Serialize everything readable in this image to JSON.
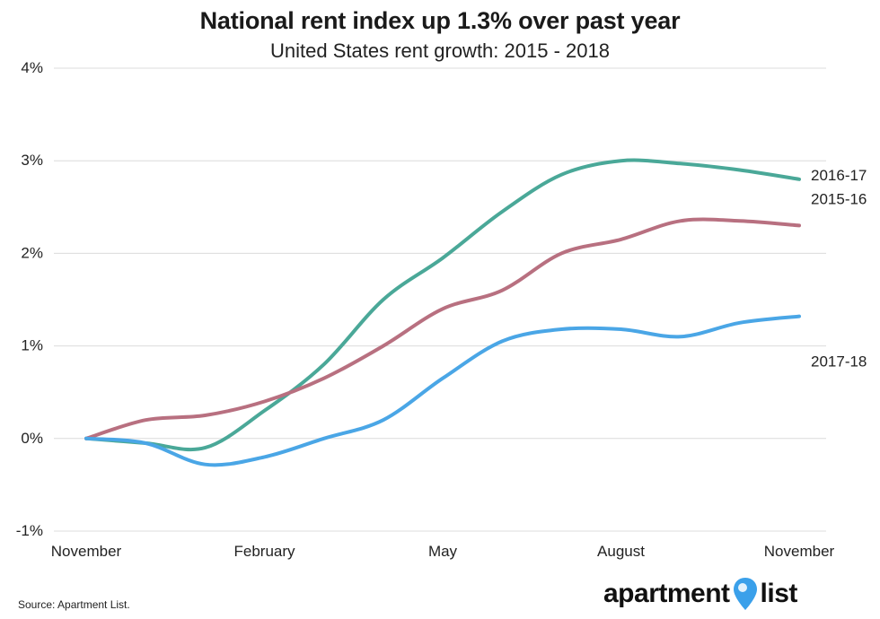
{
  "title": "National rent index up 1.3% over past year",
  "subtitle": "United States rent growth: 2015 - 2018",
  "source": "Source: Apartment List.",
  "logo": {
    "left_text": "apartment",
    "right_text": "list",
    "pin_color": "#3aa0ea"
  },
  "chart_data": {
    "type": "line",
    "title": "National rent index up 1.3% over past year",
    "subtitle": "United States rent growth: 2015 - 2018",
    "x_tick_labels": [
      "November",
      "February",
      "May",
      "August",
      "November"
    ],
    "x": [
      0,
      1,
      2,
      3,
      4,
      5,
      6,
      7,
      8,
      9,
      10,
      11,
      12
    ],
    "y_ticks": [
      "4%",
      "3%",
      "2%",
      "1%",
      "0%",
      "-1%"
    ],
    "ylim": [
      -1,
      4
    ],
    "grid": true,
    "series": [
      {
        "name": "2016-17",
        "color": "#4aa898",
        "values": [
          0.0,
          -0.05,
          -0.1,
          0.3,
          0.8,
          1.5,
          1.95,
          2.45,
          2.85,
          3.0,
          2.97,
          2.9,
          2.8
        ]
      },
      {
        "name": "2015-16",
        "color": "#b87080",
        "values": [
          0.0,
          0.2,
          0.25,
          0.4,
          0.65,
          1.0,
          1.4,
          1.6,
          2.0,
          2.15,
          2.35,
          2.35,
          2.3
        ]
      },
      {
        "name": "2017-18",
        "color": "#4aa6e6",
        "values": [
          0.0,
          -0.05,
          -0.28,
          -0.2,
          0.0,
          0.2,
          0.65,
          1.05,
          1.18,
          1.18,
          1.1,
          1.25,
          1.32
        ]
      }
    ]
  }
}
